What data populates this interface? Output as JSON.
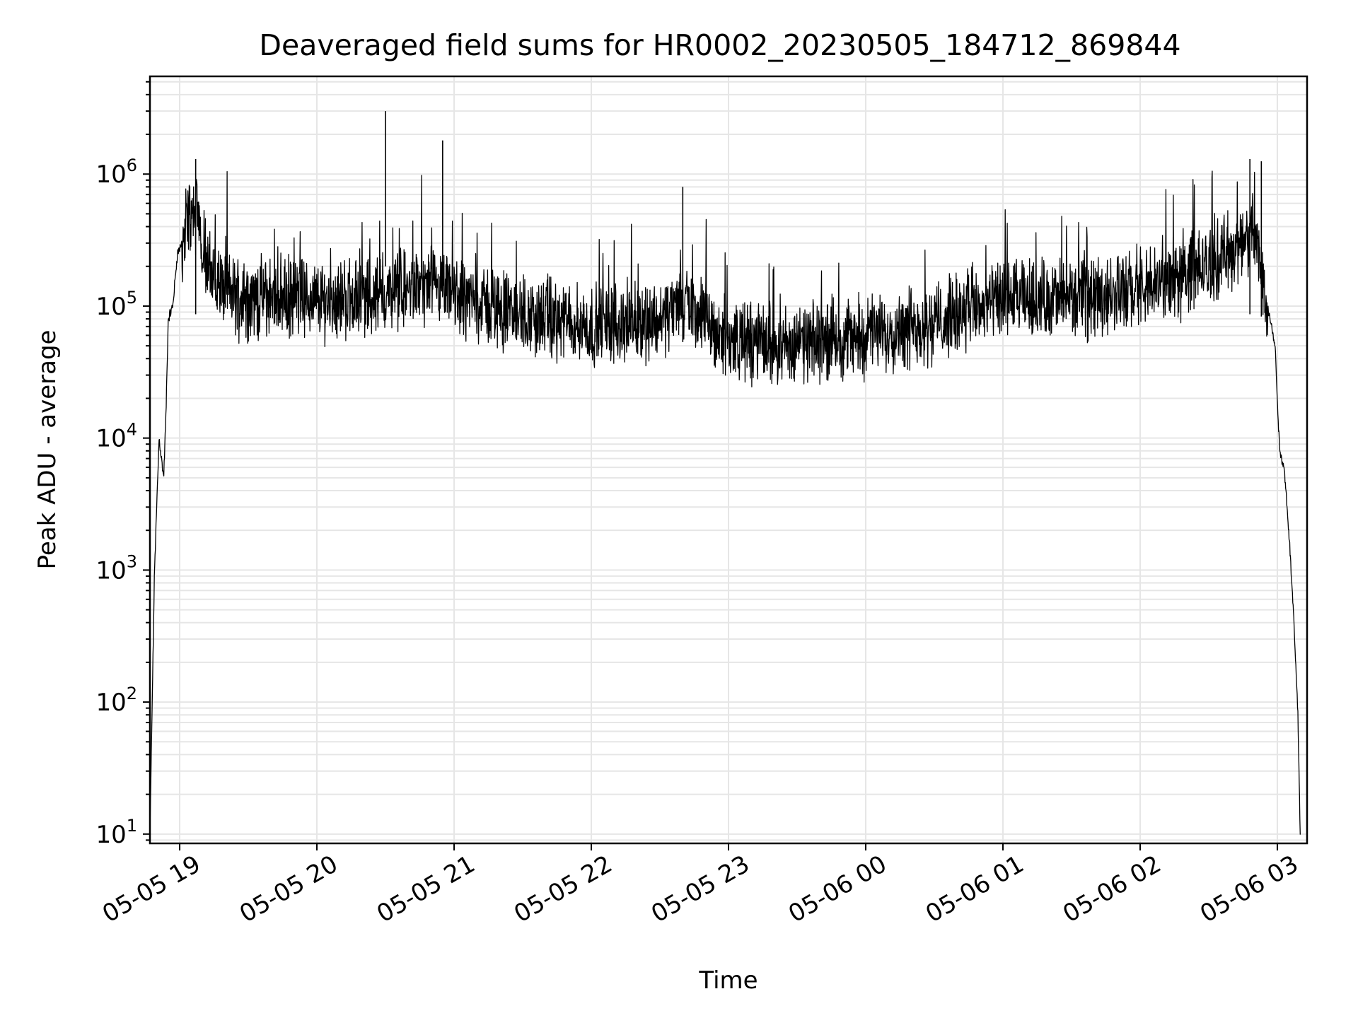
{
  "chart_data": {
    "type": "line",
    "title": "Deaveraged field sums for HR0002_20230505_184712_869844",
    "xlabel": "Time",
    "ylabel": "Peak ADU - average",
    "yscale": "log",
    "ylim": [
      8.5,
      5500000
    ],
    "xlim": [
      "2023-05-05 18:47",
      "2023-05-06 03:13"
    ],
    "grid": true,
    "line_color": "#000000",
    "grid_color": "#e6e6e6",
    "x_ticks": [
      {
        "t": "2023-05-05 19:00",
        "label": "05-05 19"
      },
      {
        "t": "2023-05-05 20:00",
        "label": "05-05 20"
      },
      {
        "t": "2023-05-05 21:00",
        "label": "05-05 21"
      },
      {
        "t": "2023-05-05 22:00",
        "label": "05-05 22"
      },
      {
        "t": "2023-05-05 23:00",
        "label": "05-05 23"
      },
      {
        "t": "2023-05-06 00:00",
        "label": "05-06 00"
      },
      {
        "t": "2023-05-06 01:00",
        "label": "05-06 01"
      },
      {
        "t": "2023-05-06 02:00",
        "label": "05-06 02"
      },
      {
        "t": "2023-05-06 03:00",
        "label": "05-06 03"
      }
    ],
    "y_ticks": [
      {
        "value": 10,
        "base": "10",
        "exp": "1"
      },
      {
        "value": 100,
        "base": "10",
        "exp": "2"
      },
      {
        "value": 1000,
        "base": "10",
        "exp": "3"
      },
      {
        "value": 10000,
        "base": "10",
        "exp": "4"
      },
      {
        "value": 100000,
        "base": "10",
        "exp": "5"
      },
      {
        "value": 1000000,
        "base": "10",
        "exp": "6"
      }
    ],
    "series": [
      {
        "color": "#000000",
        "x": [
          "2023-05-05 18:47",
          "2023-05-05 18:49",
          "2023-05-05 18:51",
          "2023-05-05 18:53",
          "2023-05-05 18:54",
          "2023-05-05 18:55",
          "2023-05-05 18:57",
          "2023-05-05 18:59",
          "2023-05-05 19:01",
          "2023-05-05 19:03",
          "2023-05-05 19:05",
          "2023-05-05 19:07",
          "2023-05-05 19:10",
          "2023-05-05 19:13",
          "2023-05-05 19:20",
          "2023-05-05 19:30",
          "2023-05-05 19:40",
          "2023-05-05 20:00",
          "2023-05-05 20:30",
          "2023-05-05 20:45",
          "2023-05-05 21:00",
          "2023-05-05 21:30",
          "2023-05-05 22:00",
          "2023-05-05 22:30",
          "2023-05-05 22:40",
          "2023-05-05 23:00",
          "2023-05-05 23:30",
          "2023-05-06 00:00",
          "2023-05-06 00:30",
          "2023-05-06 01:00",
          "2023-05-06 01:30",
          "2023-05-06 02:00",
          "2023-05-06 02:30",
          "2023-05-06 02:50",
          "2023-05-06 02:59",
          "2023-05-06 03:01",
          "2023-05-06 03:03",
          "2023-05-06 03:05",
          "2023-05-06 03:07",
          "2023-05-06 03:09",
          "2023-05-06 03:10"
        ],
        "values": [
          10,
          1000,
          10000,
          5000,
          15000,
          80000,
          100000,
          250000,
          300000,
          450000,
          500000,
          480000,
          300000,
          180000,
          130000,
          110000,
          120000,
          110000,
          120000,
          140000,
          120000,
          85000,
          70000,
          80000,
          110000,
          55000,
          50000,
          60000,
          75000,
          110000,
          115000,
          130000,
          200000,
          350000,
          50000,
          8000,
          6000,
          2000,
          500,
          80,
          10
        ]
      }
    ],
    "spikes": [
      {
        "x": "2023-05-05 20:30",
        "value": 3000000
      },
      {
        "x": "2023-05-05 20:55",
        "value": 1800000
      },
      {
        "x": "2023-05-05 22:40",
        "value": 800000
      },
      {
        "x": "2023-05-05 19:07",
        "value": 1300000
      },
      {
        "x": "2023-05-06 02:48",
        "value": 1300000
      },
      {
        "x": "2023-05-06 02:53",
        "value": 1250000
      }
    ]
  }
}
